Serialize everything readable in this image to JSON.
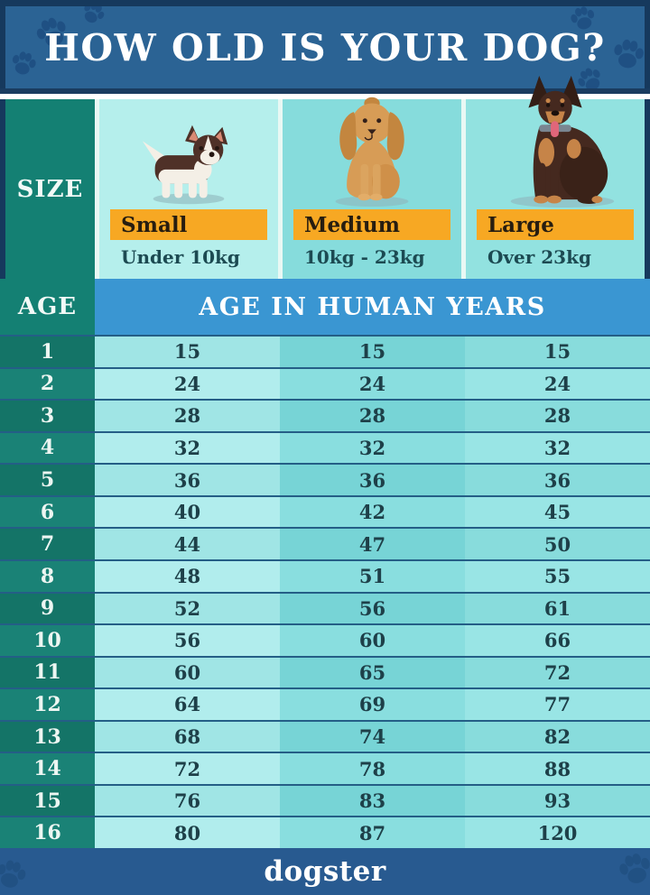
{
  "title": "HOW OLD IS YOUR DOG?",
  "size_row": {
    "label": "SIZE",
    "columns": [
      {
        "name": "Small",
        "weight": "Under 10kg",
        "dog": "small corgi puppy"
      },
      {
        "name": "Medium",
        "weight": "10kg - 23kg",
        "dog": "medium cocker spaniel"
      },
      {
        "name": "Large",
        "weight": "Over 23kg",
        "dog": "large doberman"
      }
    ]
  },
  "age_row": {
    "label": "AGE",
    "banner": "AGE IN HUMAN YEARS"
  },
  "footer": {
    "brand": "dogster"
  },
  "colors": {
    "header_blue": "#2b6394",
    "outer_navy": "#16395d",
    "green_label": "#148073",
    "banner_blue": "#3a96d2",
    "pill_orange": "#f7a823",
    "footer_blue": "#285a90"
  },
  "chart_data": {
    "type": "table",
    "title": "HOW OLD IS YOUR DOG?",
    "subtitle": "AGE IN HUMAN YEARS",
    "columns": [
      "Dog age (years)",
      "Small (Under 10kg)",
      "Medium (10kg - 23kg)",
      "Large (Over 23kg)"
    ],
    "ages": [
      1,
      2,
      3,
      4,
      5,
      6,
      7,
      8,
      9,
      10,
      11,
      12,
      13,
      14,
      15,
      16
    ],
    "series": [
      {
        "name": "Small",
        "values": [
          15,
          24,
          28,
          32,
          36,
          40,
          44,
          48,
          52,
          56,
          60,
          64,
          68,
          72,
          76,
          80
        ]
      },
      {
        "name": "Medium",
        "values": [
          15,
          24,
          28,
          32,
          36,
          42,
          47,
          51,
          56,
          60,
          65,
          69,
          74,
          78,
          83,
          87
        ]
      },
      {
        "name": "Large",
        "values": [
          15,
          24,
          28,
          32,
          36,
          45,
          50,
          55,
          61,
          66,
          72,
          77,
          82,
          88,
          93,
          120
        ]
      }
    ]
  }
}
